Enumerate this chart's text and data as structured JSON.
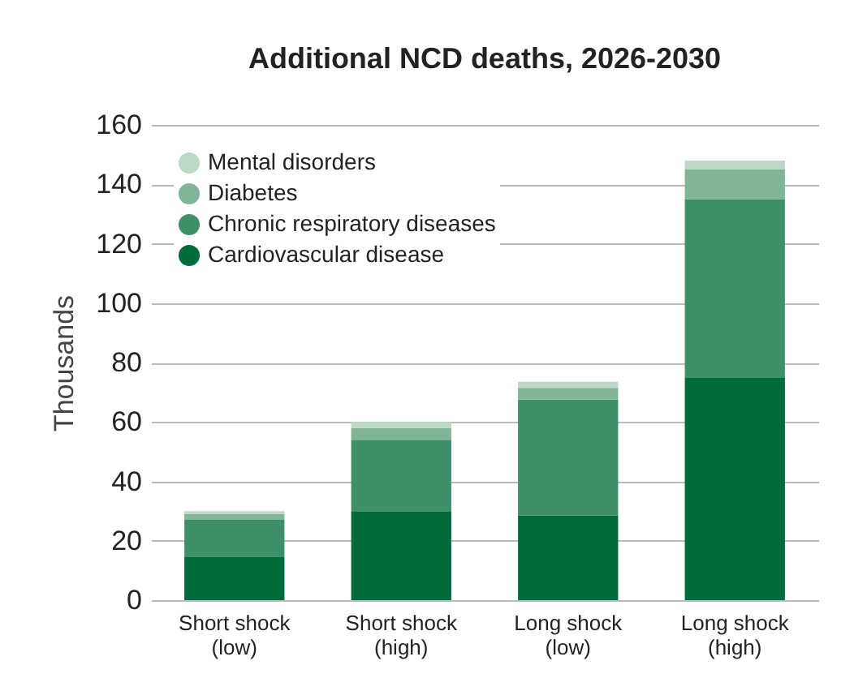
{
  "chart_data": {
    "type": "bar",
    "title": "Additional NCD deaths, 2026-2030",
    "ylabel": "Thousands",
    "categories": [
      "Short shock (low)",
      "Short shock (high)",
      "Long shock (low)",
      "Long shock (high)"
    ],
    "stacked": true,
    "series": [
      {
        "name": "Cardiovascular disease",
        "color": "#006b3a",
        "values": [
          14.5,
          30,
          28.5,
          75
        ]
      },
      {
        "name": "Chronic respiratory diseases",
        "color": "#3d9068",
        "values": [
          12.5,
          24,
          39,
          60
        ]
      },
      {
        "name": "Diabetes",
        "color": "#80b596",
        "values": [
          2,
          4,
          4,
          10
        ]
      },
      {
        "name": "Mental disorders",
        "color": "#bcd8c6",
        "values": [
          1,
          2,
          2,
          3
        ]
      }
    ],
    "ylim": [
      0,
      160
    ],
    "yticks": [
      0,
      20,
      40,
      60,
      80,
      100,
      120,
      140,
      160
    ],
    "grid": "y",
    "legend": "top left"
  }
}
